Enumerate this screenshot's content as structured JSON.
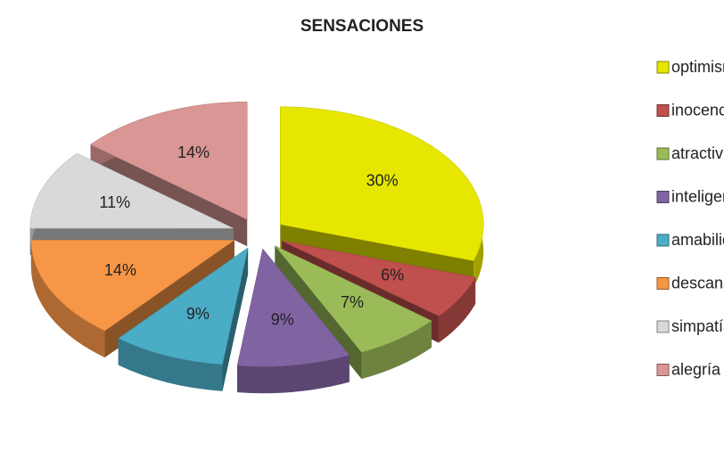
{
  "chart_data": {
    "type": "pie",
    "title": "SENSACIONES",
    "categories": [
      "optimismo",
      "inocencia",
      "atractividad",
      "inteligencia",
      "amabilidad",
      "descanso",
      "simpatía",
      "alegría"
    ],
    "values": [
      30,
      6,
      7,
      9,
      9,
      14,
      11,
      14
    ],
    "value_labels": [
      "30%",
      "6%",
      "7%",
      "9%",
      "9%",
      "14%",
      "11%",
      "14%"
    ],
    "colors": [
      "#e6e600",
      "#c0504d",
      "#9bbb59",
      "#8064a2",
      "#4bacc6",
      "#f79646",
      "#d9d9d9",
      "#d99694"
    ],
    "legend": "right"
  }
}
